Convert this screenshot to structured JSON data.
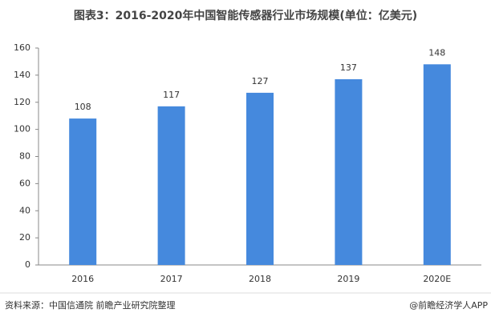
{
  "chart_data": {
    "type": "bar",
    "title": "图表3：2016-2020年中国智能传感器行业市场规模(单位：亿美元)",
    "categories": [
      "2016",
      "2017",
      "2018",
      "2019",
      "2020E"
    ],
    "values": [
      108,
      117,
      127,
      137,
      148
    ],
    "color": "#4589dd",
    "ylim": [
      0,
      160
    ],
    "yticks": [
      0,
      20,
      40,
      60,
      80,
      100,
      120,
      140,
      160
    ],
    "grid": false,
    "source": "资料来源：中国信通院 前瞻产业研究院整理",
    "credit": "@前瞻经济学人APP"
  }
}
